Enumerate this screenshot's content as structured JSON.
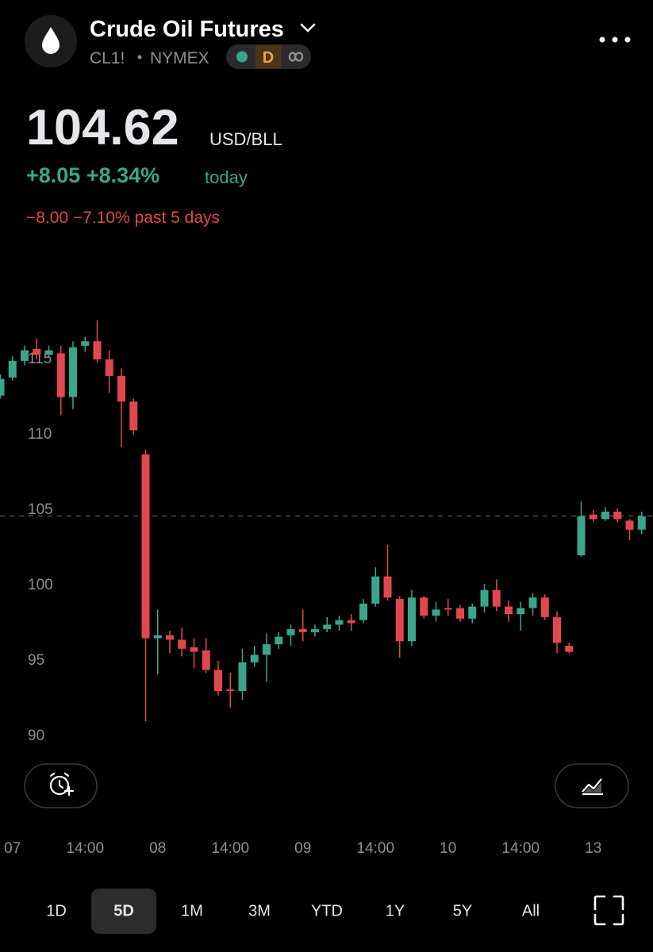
{
  "header": {
    "title": "Crude Oil Futures",
    "ticker": "CL1!",
    "exchange": "NYMEX",
    "badge": "D",
    "price": 104.62,
    "unit": "USD/BLL",
    "change_today": "+8.05 +8.34%",
    "today_label": "today",
    "change_5d": "−8.00 −7.10% past 5 days"
  },
  "chart_data": {
    "type": "candlestick",
    "categories": [
      null,
      "07",
      null,
      null,
      null,
      null,
      null,
      "14:00",
      null,
      null,
      null,
      null,
      null,
      "08",
      null,
      null,
      null,
      null,
      null,
      "14:00",
      null,
      null,
      null,
      null,
      null,
      "09",
      null,
      null,
      null,
      null,
      null,
      "14:00",
      null,
      null,
      null,
      null,
      null,
      "10",
      null,
      null,
      null,
      null,
      null,
      "14:00",
      null,
      null,
      null,
      null,
      null,
      "13",
      null,
      null,
      null,
      null
    ],
    "open": [
      112.6,
      113.8,
      114.9,
      115.7,
      115.3,
      115.4,
      112.5,
      115.9,
      116.2,
      115.0,
      113.9,
      112.2,
      108.7,
      96.5,
      96.7,
      96.4,
      95.9,
      95.7,
      94.4,
      93.1,
      93.0,
      94.9,
      95.4,
      96.1,
      96.7,
      97.1,
      96.9,
      97.1,
      97.4,
      97.7,
      97.7,
      98.8,
      100.6,
      99.1,
      96.3,
      99.2,
      98.0,
      98.5,
      98.5,
      97.8,
      98.6,
      99.7,
      98.6,
      98.1,
      98.5,
      99.2,
      97.9,
      96.0,
      102.0,
      104.7,
      104.4,
      104.9,
      104.3,
      103.7
    ],
    "high": [
      114.0,
      115.2,
      115.9,
      116.4,
      115.9,
      115.9,
      116.2,
      116.5,
      117.6,
      115.6,
      114.4,
      112.4,
      109.0,
      98.4,
      97.0,
      97.2,
      96.5,
      96.5,
      95.0,
      94.2,
      95.8,
      96.0,
      96.8,
      96.9,
      97.4,
      98.4,
      97.4,
      97.9,
      98.0,
      98.1,
      99.1,
      101.2,
      102.7,
      99.3,
      99.7,
      99.3,
      98.9,
      99.1,
      98.7,
      98.8,
      100.1,
      100.4,
      99.0,
      98.9,
      99.5,
      99.4,
      98.3,
      96.2,
      105.6,
      105.0,
      105.2,
      105.1,
      104.4,
      104.9
    ],
    "low": [
      112.4,
      113.6,
      114.6,
      115.0,
      115.1,
      111.3,
      111.7,
      115.5,
      114.8,
      112.8,
      109.2,
      110.0,
      91.0,
      94.1,
      95.5,
      95.3,
      94.5,
      94.2,
      92.7,
      91.9,
      92.4,
      94.6,
      93.6,
      95.8,
      96.0,
      96.3,
      96.6,
      96.9,
      97.0,
      97.0,
      97.5,
      98.6,
      99.0,
      95.2,
      96.0,
      97.8,
      97.6,
      98.0,
      97.6,
      97.5,
      98.2,
      98.3,
      97.6,
      97.0,
      98.0,
      97.7,
      95.5,
      95.5,
      101.9,
      104.2,
      104.3,
      104.2,
      103.0,
      103.4
    ],
    "close": [
      113.7,
      114.9,
      115.6,
      115.3,
      115.6,
      112.5,
      115.8,
      116.2,
      115.0,
      113.9,
      112.2,
      110.3,
      96.5,
      96.7,
      96.4,
      95.8,
      95.6,
      94.4,
      93.0,
      93.0,
      94.9,
      95.4,
      96.1,
      96.6,
      97.1,
      96.9,
      97.1,
      97.4,
      97.7,
      97.5,
      98.8,
      100.6,
      99.2,
      96.3,
      99.2,
      98.0,
      98.4,
      98.4,
      97.8,
      98.6,
      99.7,
      98.6,
      98.1,
      98.5,
      99.2,
      97.9,
      96.2,
      95.6,
      104.6,
      104.4,
      104.9,
      104.4,
      103.7,
      104.6
    ],
    "up_color": "#3aa58a",
    "down_color": "#e2474f",
    "ylim": [
      89,
      118
    ],
    "yticks": [
      90,
      95,
      100,
      105,
      110,
      115
    ]
  },
  "ranges": [
    "1D",
    "5D",
    "1M",
    "3M",
    "YTD",
    "1Y",
    "5Y",
    "All"
  ],
  "selected_range": 1
}
